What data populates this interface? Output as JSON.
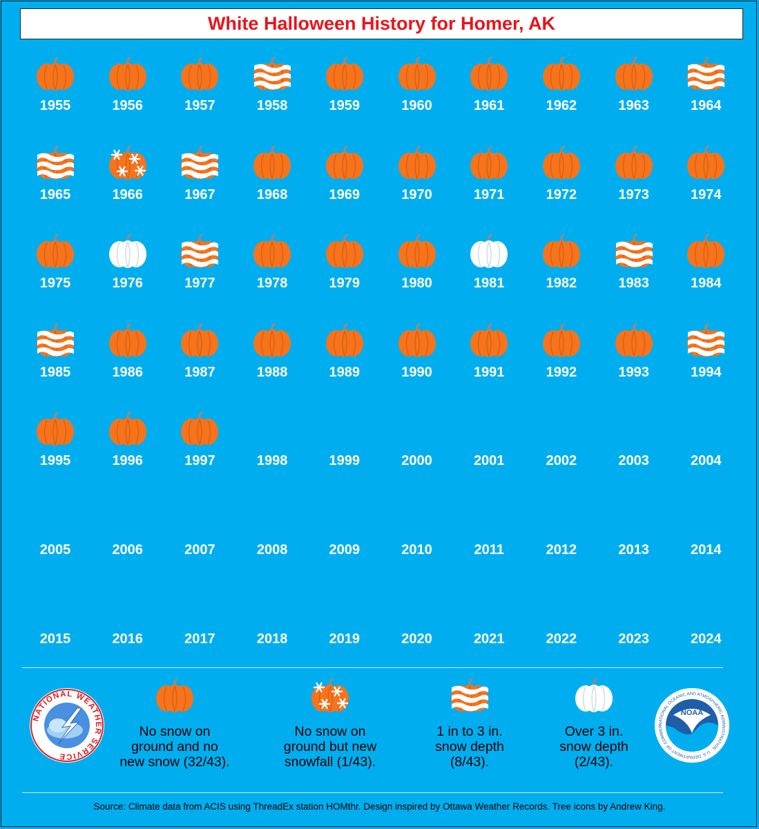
{
  "title": "White Halloween History for Homer, AK",
  "colors": {
    "background": "#00aeef",
    "pumpkin": "#f7731c",
    "pumpkin_stem": "#8c8c8c",
    "snow": "#ffffff",
    "title": "#e8141c"
  },
  "chart_data": {
    "type": "table",
    "title": "White Halloween History for Homer, AK",
    "categories": {
      "none": "No snow on ground and no new snow (32/43).",
      "new": "No snow on ground but new snowfall (1/43).",
      "depth1to3": "1 in to 3 in. snow depth (8/43).",
      "over3": "Over 3 in. snow depth (2/43)."
    },
    "years": [
      {
        "year": "1955",
        "category": "none"
      },
      {
        "year": "1956",
        "category": "none"
      },
      {
        "year": "1957",
        "category": "none"
      },
      {
        "year": "1958",
        "category": "depth1to3"
      },
      {
        "year": "1959",
        "category": "none"
      },
      {
        "year": "1960",
        "category": "none"
      },
      {
        "year": "1961",
        "category": "none"
      },
      {
        "year": "1962",
        "category": "none"
      },
      {
        "year": "1963",
        "category": "none"
      },
      {
        "year": "1964",
        "category": "depth1to3"
      },
      {
        "year": "1965",
        "category": "depth1to3"
      },
      {
        "year": "1966",
        "category": "new"
      },
      {
        "year": "1967",
        "category": "depth1to3"
      },
      {
        "year": "1968",
        "category": "none"
      },
      {
        "year": "1969",
        "category": "none"
      },
      {
        "year": "1970",
        "category": "none"
      },
      {
        "year": "1971",
        "category": "none"
      },
      {
        "year": "1972",
        "category": "none"
      },
      {
        "year": "1973",
        "category": "none"
      },
      {
        "year": "1974",
        "category": "none"
      },
      {
        "year": "1975",
        "category": "none"
      },
      {
        "year": "1976",
        "category": "over3"
      },
      {
        "year": "1977",
        "category": "depth1to3"
      },
      {
        "year": "1978",
        "category": "none"
      },
      {
        "year": "1979",
        "category": "none"
      },
      {
        "year": "1980",
        "category": "none"
      },
      {
        "year": "1981",
        "category": "over3"
      },
      {
        "year": "1982",
        "category": "none"
      },
      {
        "year": "1983",
        "category": "depth1to3"
      },
      {
        "year": "1984",
        "category": "none"
      },
      {
        "year": "1985",
        "category": "depth1to3"
      },
      {
        "year": "1986",
        "category": "none"
      },
      {
        "year": "1987",
        "category": "none"
      },
      {
        "year": "1988",
        "category": "none"
      },
      {
        "year": "1989",
        "category": "none"
      },
      {
        "year": "1990",
        "category": "none"
      },
      {
        "year": "1991",
        "category": "none"
      },
      {
        "year": "1992",
        "category": "none"
      },
      {
        "year": "1993",
        "category": "none"
      },
      {
        "year": "1994",
        "category": "depth1to3"
      },
      {
        "year": "1995",
        "category": "none"
      },
      {
        "year": "1996",
        "category": "none"
      },
      {
        "year": "1997",
        "category": "none"
      },
      {
        "year": "1998",
        "category": null
      },
      {
        "year": "1999",
        "category": null
      },
      {
        "year": "2000",
        "category": null
      },
      {
        "year": "2001",
        "category": null
      },
      {
        "year": "2002",
        "category": null
      },
      {
        "year": "2003",
        "category": null
      },
      {
        "year": "2004",
        "category": null
      },
      {
        "year": "2005",
        "category": null
      },
      {
        "year": "2006",
        "category": null
      },
      {
        "year": "2007",
        "category": null
      },
      {
        "year": "2008",
        "category": null
      },
      {
        "year": "2009",
        "category": null
      },
      {
        "year": "2010",
        "category": null
      },
      {
        "year": "2011",
        "category": null
      },
      {
        "year": "2012",
        "category": null
      },
      {
        "year": "2013",
        "category": null
      },
      {
        "year": "2014",
        "category": null
      },
      {
        "year": "2015",
        "category": null
      },
      {
        "year": "2016",
        "category": null
      },
      {
        "year": "2017",
        "category": null
      },
      {
        "year": "2018",
        "category": null
      },
      {
        "year": "2019",
        "category": null
      },
      {
        "year": "2020",
        "category": null
      },
      {
        "year": "2021",
        "category": null
      },
      {
        "year": "2022",
        "category": null
      },
      {
        "year": "2023",
        "category": null
      },
      {
        "year": "2024",
        "category": null
      }
    ]
  },
  "legend": [
    {
      "key": "none",
      "icon": "plain-pumpkin-icon",
      "lines": [
        "No snow on",
        "ground and no",
        "new snow (32/43)."
      ]
    },
    {
      "key": "new",
      "icon": "snowflake-pumpkin-icon",
      "lines": [
        "No snow on",
        "ground but new",
        "snowfall (1/43)."
      ]
    },
    {
      "key": "depth1to3",
      "icon": "striped-snow-pumpkin-icon",
      "lines": [
        "1 in to 3 in.",
        "snow depth",
        "(8/43)."
      ]
    },
    {
      "key": "over3",
      "icon": "white-pumpkin-icon",
      "lines": [
        "Over 3 in.",
        "snow depth",
        "(2/43)."
      ]
    }
  ],
  "logos": {
    "nws_text": "NATIONAL WEATHER SERVICE",
    "noaa_text": "NOAA",
    "noaa_ring_text": "NATIONAL OCEANIC AND ATMOSPHERIC ADMINISTRATION · U.S. DEPARTMENT OF COMMERCE"
  },
  "source": "Source: Climate data from ACIS using ThreadEx station HOMthr. Design inspired by Ottawa Weather Records. Tree icons by Andrew King."
}
